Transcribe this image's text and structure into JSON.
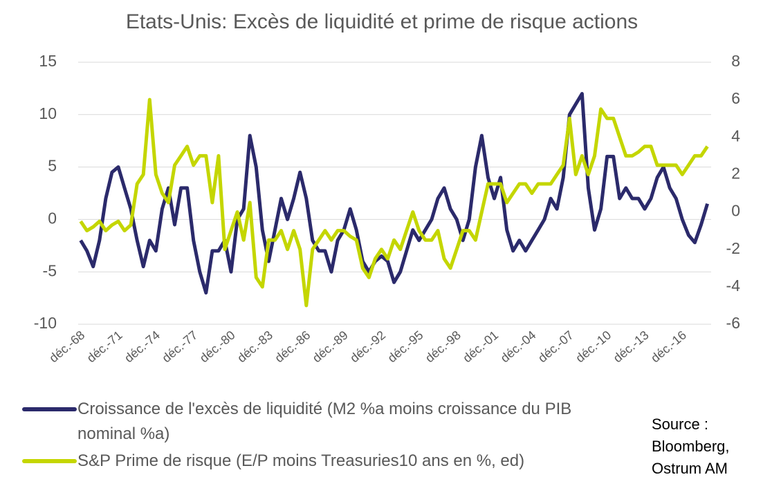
{
  "chart_data": {
    "type": "line",
    "title": "Etats-Unis: Excès de liquidité et prime de risque actions",
    "source": "Source : Bloomberg, Ostrum AM",
    "categories": [
      "déc.-68",
      null,
      null,
      null,
      null,
      null,
      "déc.-71",
      null,
      null,
      null,
      null,
      null,
      "déc.-74",
      null,
      null,
      null,
      null,
      null,
      "déc.-77",
      null,
      null,
      null,
      null,
      null,
      "déc.-80",
      null,
      null,
      null,
      null,
      null,
      "déc.-83",
      null,
      null,
      null,
      null,
      null,
      "déc.-86",
      null,
      null,
      null,
      null,
      null,
      "déc.-89",
      null,
      null,
      null,
      null,
      null,
      "déc.-92",
      null,
      null,
      null,
      null,
      null,
      "déc.-95",
      null,
      null,
      null,
      null,
      null,
      "déc.-98",
      null,
      null,
      null,
      null,
      null,
      "déc.-01",
      null,
      null,
      null,
      null,
      null,
      "déc.-04",
      null,
      null,
      null,
      null,
      null,
      "déc.-07",
      null,
      null,
      null,
      null,
      null,
      "déc.-10",
      null,
      null,
      null,
      null,
      null,
      "déc.-13",
      null,
      null,
      null,
      null,
      null,
      "déc.-16",
      null,
      null,
      null,
      null
    ],
    "series": [
      {
        "name": "Croissance de l'excès de liquidité (M2 %a moins croissance du PIB nominal %a)",
        "color": "#2b2a6b",
        "axis": "y",
        "values": [
          -2,
          -3,
          -4.5,
          -2,
          2,
          4.5,
          5,
          3,
          1,
          -2,
          -4.5,
          -2,
          -3,
          1,
          3,
          -0.5,
          3,
          3,
          -2,
          -5,
          -7,
          -3,
          -3,
          -2,
          -5,
          0,
          1,
          8,
          5,
          -1,
          -4,
          -1,
          2,
          0,
          2,
          4.5,
          2,
          -2,
          -3,
          -3,
          -5,
          -2,
          -1,
          1,
          -1,
          -4,
          -5,
          -4,
          -3.5,
          -4,
          -6,
          -5,
          -3,
          -1,
          -2,
          -1,
          0,
          2,
          3,
          1,
          0,
          -2,
          0,
          5,
          8,
          4,
          2,
          4,
          -1,
          -3,
          -2,
          -3,
          -2,
          -1,
          0,
          2,
          1,
          4,
          10,
          11,
          12,
          3,
          -1,
          1,
          6,
          6,
          2,
          3,
          2,
          2,
          1,
          2,
          4,
          5,
          3,
          2,
          0,
          -1.5,
          -2.2,
          -0.5,
          1.5
        ]
      },
      {
        "name": "S&P Prime de risque (E/P moins Treasuries10 ans en %, ed)",
        "color": "#c4d600",
        "axis": "y2",
        "values": [
          -0.5,
          -1,
          -0.8,
          -0.5,
          -1,
          -0.7,
          -0.5,
          -1,
          -0.7,
          1.5,
          2,
          6,
          2,
          1,
          0.5,
          2.5,
          3,
          3.5,
          2.5,
          3,
          3,
          0.5,
          3,
          -2,
          -1,
          0,
          -1.5,
          0.5,
          -3.5,
          -4,
          -1.5,
          -1.5,
          -1,
          -2,
          -1,
          -2,
          -5,
          -2,
          -1.5,
          -1,
          -1.5,
          -1,
          -1,
          -1.3,
          -1.5,
          -3,
          -3.5,
          -2.5,
          -2,
          -2.5,
          -1.5,
          -2,
          -1,
          0,
          -1,
          -1.5,
          -1.5,
          -1,
          -2.5,
          -3,
          -2,
          -1,
          -1,
          -1.5,
          0,
          1.5,
          1.5,
          1.5,
          0.5,
          1,
          1.5,
          1.5,
          1,
          1.5,
          1.5,
          1.5,
          2,
          2.5,
          5,
          2,
          3,
          2,
          3,
          5.5,
          5,
          5,
          4,
          3,
          3,
          3.2,
          3.5,
          3.5,
          2.5,
          2.5,
          2.5,
          2.5,
          2,
          2.5,
          3,
          3,
          3.5
        ]
      }
    ],
    "ylim": [
      -10,
      15
    ],
    "yticks": [
      -10,
      -5,
      0,
      5,
      10,
      15
    ],
    "y2lim": [
      -6,
      8
    ],
    "y2ticks": [
      -6,
      -4,
      -2,
      0,
      2,
      4,
      6,
      8
    ],
    "grid": true
  }
}
